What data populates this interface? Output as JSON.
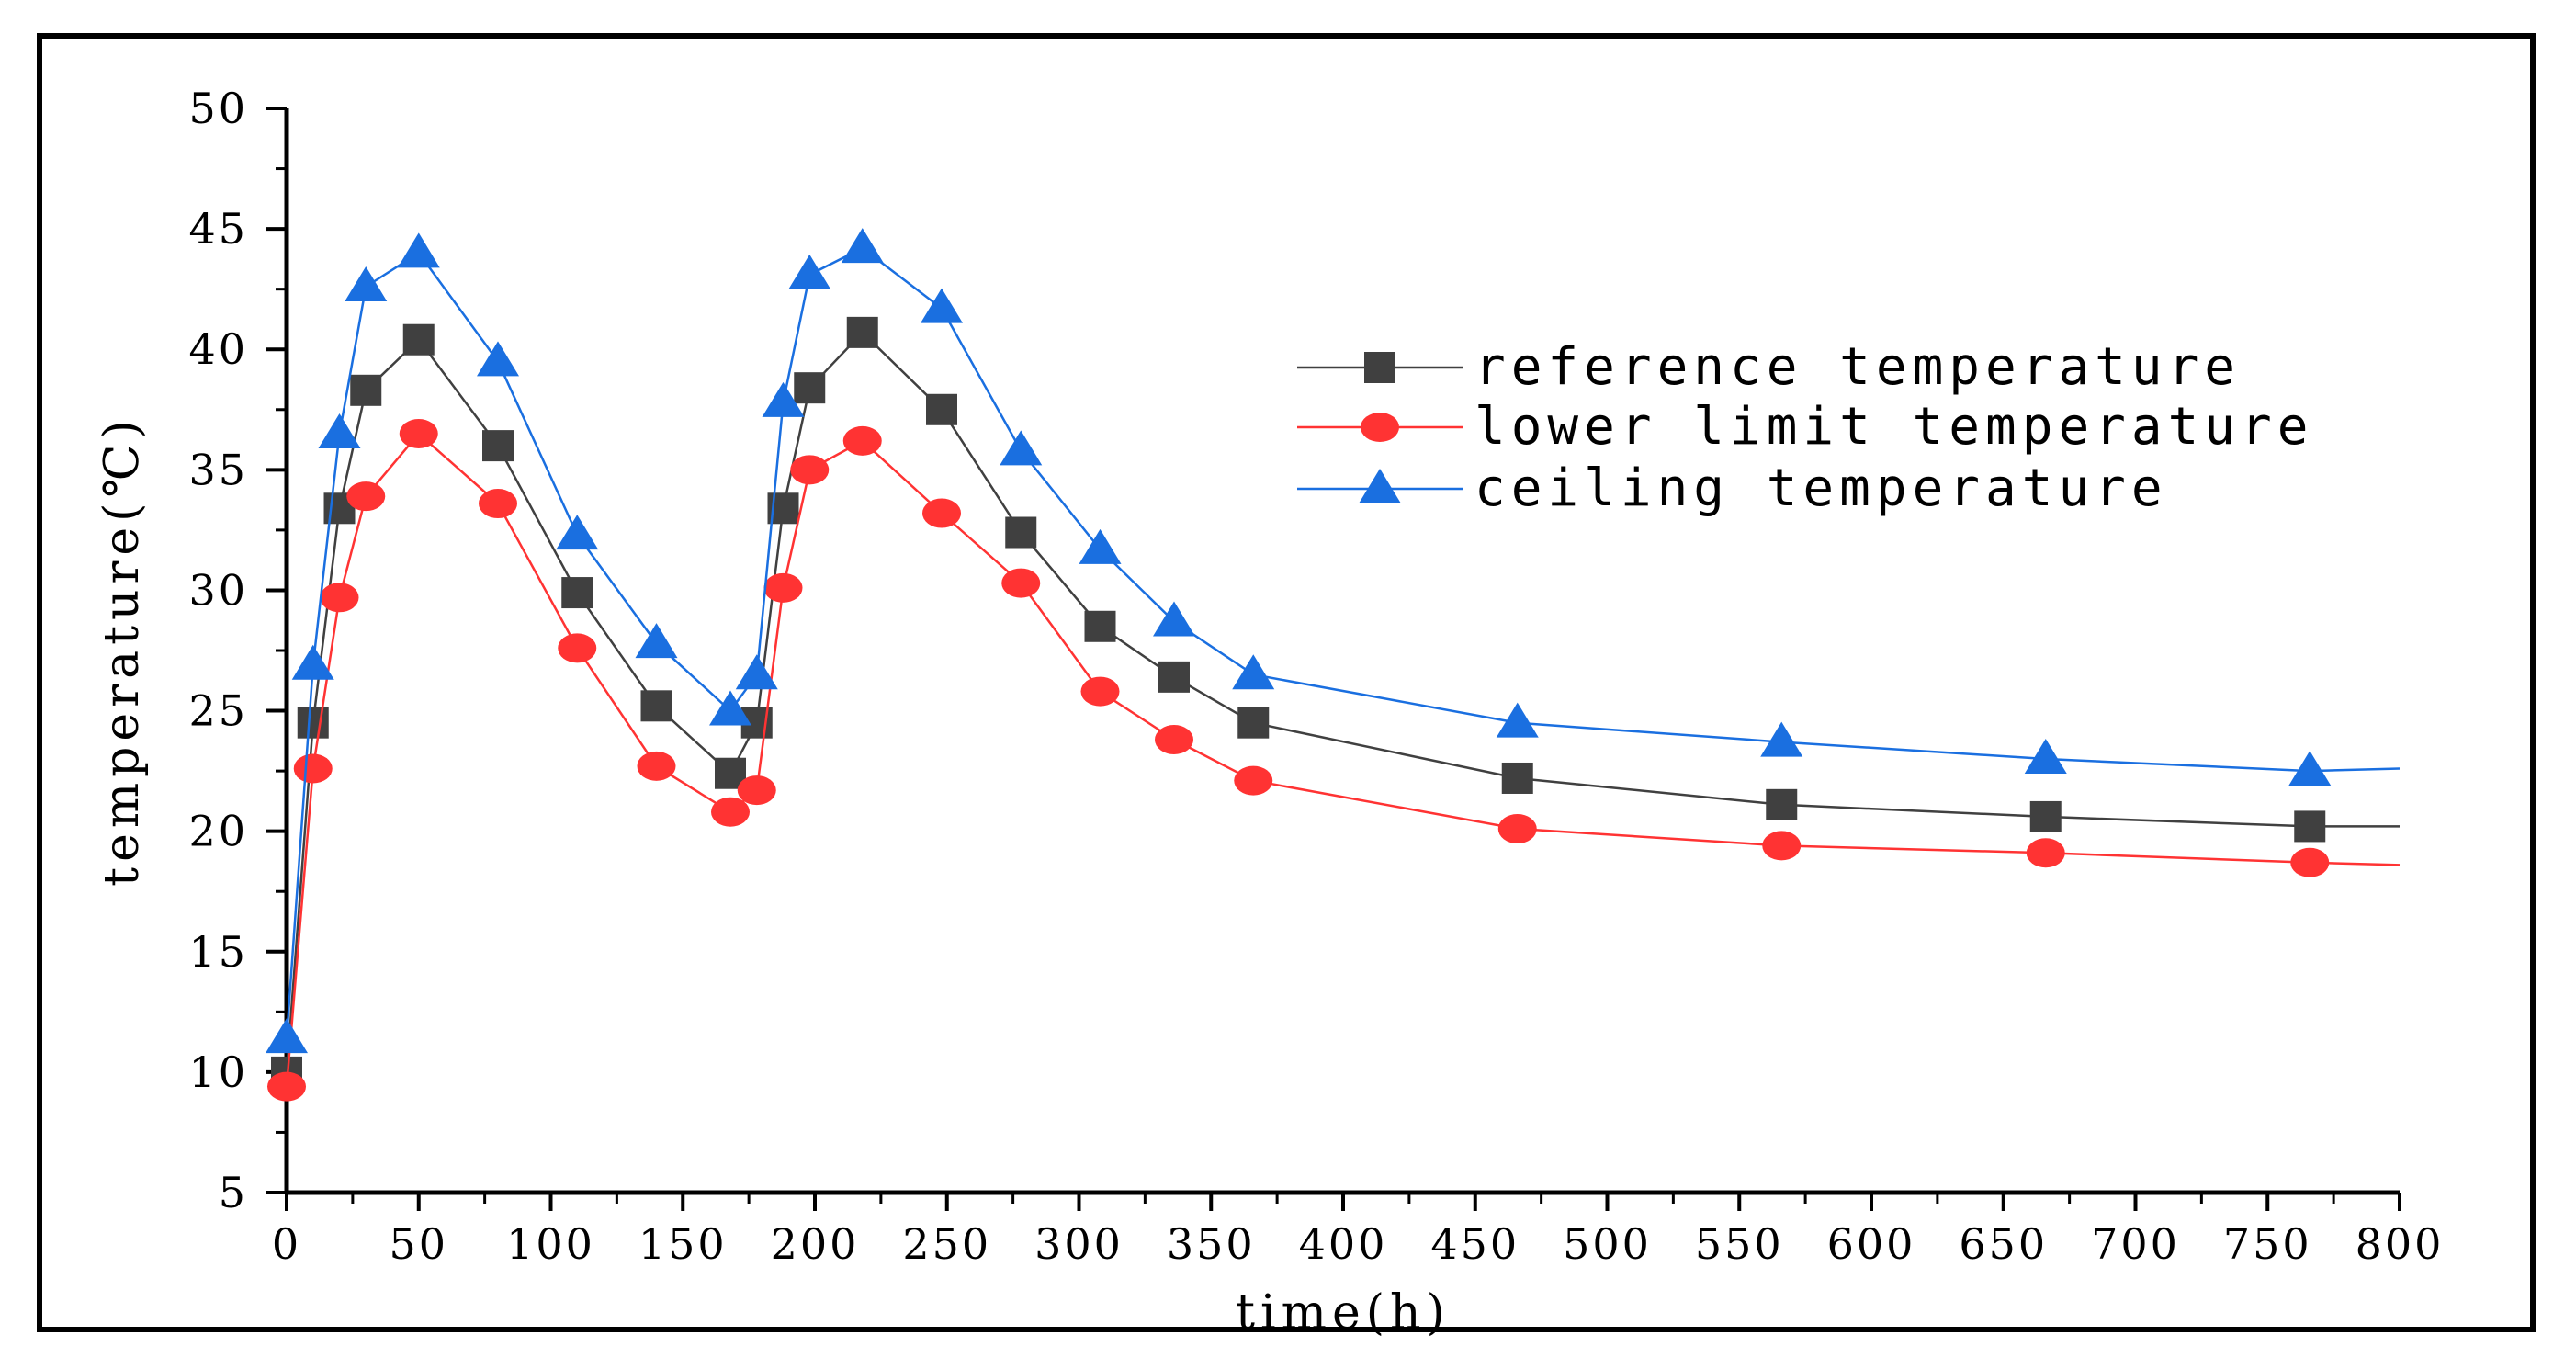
{
  "chart_data": {
    "type": "line",
    "title": "",
    "xlabel": "time(h)",
    "ylabel": "temperature(℃)",
    "xlim": [
      0,
      800
    ],
    "ylim": [
      5,
      50
    ],
    "xticks": [
      0,
      50,
      100,
      150,
      200,
      250,
      300,
      350,
      400,
      450,
      500,
      550,
      600,
      650,
      700,
      750,
      800
    ],
    "yticks": [
      5,
      10,
      15,
      20,
      25,
      30,
      35,
      40,
      45,
      50
    ],
    "grid": false,
    "legend_position": "upper-right",
    "series": [
      {
        "name": "reference temperature",
        "color": "#404040",
        "marker": "square",
        "x": [
          0,
          10,
          20,
          30,
          50,
          80,
          110,
          140,
          168,
          178,
          188,
          198,
          218,
          248,
          278,
          308,
          336,
          366,
          466,
          566,
          666,
          766,
          800
        ],
        "y": [
          10.0,
          24.5,
          33.4,
          38.3,
          40.4,
          36.0,
          29.9,
          25.2,
          22.4,
          24.5,
          33.4,
          38.4,
          40.7,
          37.5,
          32.4,
          28.5,
          26.4,
          24.5,
          22.2,
          21.1,
          20.6,
          20.2,
          20.2
        ],
        "marked": [
          true,
          true,
          true,
          true,
          true,
          true,
          true,
          true,
          true,
          true,
          true,
          true,
          true,
          true,
          true,
          true,
          true,
          true,
          true,
          true,
          true,
          true,
          false
        ]
      },
      {
        "name": "lower limit temperature",
        "color": "#ff3333",
        "marker": "circle",
        "x": [
          0,
          10,
          20,
          30,
          50,
          80,
          110,
          140,
          168,
          178,
          188,
          198,
          218,
          248,
          278,
          308,
          336,
          366,
          466,
          566,
          666,
          766,
          800
        ],
        "y": [
          9.4,
          22.6,
          29.7,
          33.9,
          36.5,
          33.6,
          27.6,
          22.7,
          20.8,
          21.7,
          30.1,
          35.0,
          36.2,
          33.2,
          30.3,
          25.8,
          23.8,
          22.1,
          20.1,
          19.4,
          19.1,
          18.7,
          18.6
        ],
        "marked": [
          true,
          true,
          true,
          true,
          true,
          true,
          true,
          true,
          true,
          true,
          true,
          true,
          true,
          true,
          true,
          true,
          true,
          true,
          true,
          true,
          true,
          true,
          false
        ]
      },
      {
        "name": "ceiling temperature",
        "color": "#1a6fe0",
        "marker": "triangle",
        "x": [
          0,
          10,
          20,
          30,
          50,
          80,
          110,
          140,
          168,
          178,
          188,
          198,
          218,
          248,
          278,
          308,
          336,
          366,
          466,
          566,
          666,
          766,
          800
        ],
        "y": [
          11.4,
          26.9,
          36.5,
          42.6,
          44.0,
          39.5,
          32.3,
          27.8,
          25.0,
          26.5,
          37.8,
          43.1,
          44.2,
          41.7,
          35.8,
          31.7,
          28.7,
          26.5,
          24.5,
          23.7,
          23.0,
          22.5,
          22.6
        ],
        "marked": [
          true,
          true,
          true,
          true,
          true,
          true,
          true,
          true,
          true,
          true,
          true,
          true,
          true,
          true,
          true,
          true,
          true,
          true,
          true,
          true,
          true,
          true,
          false
        ]
      }
    ]
  }
}
